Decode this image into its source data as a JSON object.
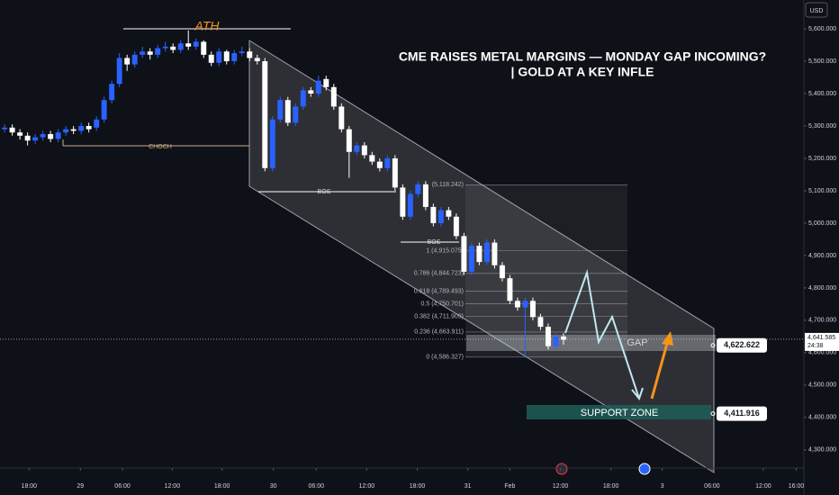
{
  "chart_data": {
    "type": "candlestick",
    "title": "CME RAISES METAL MARGINS — MONDAY GAP INCOMING?",
    "subtitle": "| GOLD AT A KEY INFLE",
    "currency": "USD",
    "up_color": "#2962ff",
    "down_color": "#ffffff",
    "open": [
      5290,
      5295,
      5280,
      5270,
      5255,
      5265,
      5275,
      5260,
      5280,
      5290,
      5285,
      5300,
      5295,
      5320,
      5380,
      5430,
      5510,
      5490,
      5520,
      5530,
      5520,
      5540,
      5545,
      5535,
      5555,
      5545,
      5560,
      5520,
      5495,
      5530,
      5500,
      5525,
      5530,
      5510,
      5500,
      5170,
      5320,
      5380,
      5310,
      5360,
      5410,
      5400,
      5445,
      5420,
      5360,
      5290,
      5220,
      5240,
      5210,
      5190,
      5170,
      5200,
      5110,
      5020,
      5090,
      5120,
      5050,
      5000,
      5040,
      5020,
      4960,
      4850,
      4930,
      4880,
      4940,
      4870,
      4830,
      4760,
      4740,
      4760,
      4710,
      4680,
      4620,
      4650
    ],
    "high": [
      5305,
      5305,
      5290,
      5280,
      5275,
      5285,
      5285,
      5290,
      5300,
      5300,
      5310,
      5310,
      5330,
      5390,
      5440,
      5525,
      5520,
      5530,
      5545,
      5540,
      5550,
      5560,
      5555,
      5565,
      5595,
      5570,
      5565,
      5530,
      5540,
      5535,
      5535,
      5545,
      5540,
      5520,
      5510,
      5330,
      5390,
      5390,
      5370,
      5420,
      5420,
      5455,
      5455,
      5430,
      5370,
      5300,
      5250,
      5250,
      5220,
      5200,
      5210,
      5210,
      5120,
      5100,
      5130,
      5130,
      5060,
      5050,
      5050,
      5030,
      4970,
      4940,
      4940,
      4950,
      4950,
      4880,
      4840,
      4770,
      4770,
      4770,
      4720,
      4690,
      4660,
      4660
    ],
    "low": [
      5280,
      5270,
      5258,
      5240,
      5245,
      5255,
      5250,
      5250,
      5270,
      5275,
      5275,
      5280,
      5285,
      5310,
      5370,
      5420,
      5470,
      5480,
      5510,
      5505,
      5510,
      5530,
      5525,
      5525,
      5535,
      5535,
      5510,
      5485,
      5485,
      5490,
      5490,
      5515,
      5500,
      5490,
      5160,
      5160,
      5310,
      5300,
      5300,
      5350,
      5390,
      5390,
      5410,
      5350,
      5280,
      5140,
      5210,
      5200,
      5180,
      5160,
      5160,
      5100,
      5010,
      5010,
      5080,
      5040,
      4990,
      4990,
      5010,
      4950,
      4840,
      4840,
      4870,
      4870,
      4860,
      4820,
      4750,
      4730,
      4586,
      4700,
      4670,
      4610,
      4610,
      4625
    ],
    "close": [
      5295,
      5280,
      5270,
      5255,
      5265,
      5275,
      5260,
      5280,
      5290,
      5285,
      5300,
      5290,
      5320,
      5380,
      5430,
      5510,
      5490,
      5520,
      5530,
      5520,
      5540,
      5545,
      5535,
      5555,
      5545,
      5560,
      5520,
      5495,
      5530,
      5500,
      5525,
      5530,
      5510,
      5500,
      5170,
      5320,
      5380,
      5310,
      5360,
      5410,
      5400,
      5440,
      5420,
      5360,
      5290,
      5220,
      5240,
      5210,
      5190,
      5170,
      5200,
      5110,
      5020,
      5090,
      5120,
      5050,
      5000,
      5040,
      5020,
      4960,
      4850,
      4930,
      4880,
      4940,
      4870,
      4830,
      4760,
      4740,
      4760,
      4710,
      4680,
      4620,
      4650,
      4640
    ],
    "xlim": [
      -0.6,
      104.4
    ],
    "xticks": [
      {
        "value": 3.2,
        "label": "18:00"
      },
      {
        "value": 9.9,
        "label": "29"
      },
      {
        "value": 15.4,
        "label": "06:00"
      },
      {
        "value": 21.9,
        "label": "12:00"
      },
      {
        "value": 28.4,
        "label": "18:00"
      },
      {
        "value": 35.1,
        "label": "30"
      },
      {
        "value": 40.7,
        "label": "06:00"
      },
      {
        "value": 47.3,
        "label": "12:00"
      },
      {
        "value": 53.9,
        "label": "18:00"
      },
      {
        "value": 60.5,
        "label": "31"
      },
      {
        "value": 66,
        "label": "Feb"
      },
      {
        "value": 72.6,
        "label": "12:00"
      },
      {
        "value": 79.2,
        "label": "18:00"
      },
      {
        "value": 85.9,
        "label": "3"
      },
      {
        "value": 92.4,
        "label": "06:00"
      },
      {
        "value": 99.1,
        "label": "12:00"
      },
      {
        "value": 103.4,
        "label": "16:00"
      }
    ],
    "ylim": [
      4244,
      5689
    ],
    "yticks": [
      {
        "value": 4300,
        "label": "4,300.000"
      },
      {
        "value": 4400,
        "label": "4,400.000"
      },
      {
        "value": 4500,
        "label": "4,500.000"
      },
      {
        "value": 4600,
        "label": "4,600.000"
      },
      {
        "value": 4700,
        "label": "4,700.000"
      },
      {
        "value": 4800,
        "label": "4,800.000"
      },
      {
        "value": 4900,
        "label": "4,900.000"
      },
      {
        "value": 5000,
        "label": "5,000.000"
      },
      {
        "value": 5100,
        "label": "5,100.000"
      },
      {
        "value": 5200,
        "label": "5,200.000"
      },
      {
        "value": 5300,
        "label": "5,300.000"
      },
      {
        "value": 5400,
        "label": "5,400.000"
      },
      {
        "value": 5500,
        "label": "5,500.000"
      },
      {
        "value": 5600,
        "label": "5,600.000"
      }
    ],
    "fib_levels": [
      {
        "value": 5118.242,
        "label": "(5,118.242)"
      },
      {
        "value": 4915.075,
        "label": "1 (4,915.075)"
      },
      {
        "value": 4844.723,
        "label": "0.786 (4,844.723)"
      },
      {
        "value": 4789.493,
        "label": "0.618 (4,789.493)"
      },
      {
        "value": 4750.701,
        "label": "0.5 (4,750.701)"
      },
      {
        "value": 4711.909,
        "label": "0.382 (4,711.909)"
      },
      {
        "value": 4663.911,
        "label": "0.236 (4,663.911)"
      },
      {
        "value": 4586.327,
        "label": "0 (4,586.327)"
      }
    ],
    "price_tags": [
      {
        "value": 4622.622,
        "label": "4,622.622"
      },
      {
        "value": 4411.916,
        "label": "4,411.916"
      }
    ],
    "last_price": {
      "value": 4641.585,
      "label": "4,641.585"
    },
    "countdown": "24:38",
    "annotations": {
      "ath": "ATH",
      "choch": "CHOCH",
      "bos": [
        "BOS",
        "BOS"
      ],
      "gap": "GAP",
      "support_zone": "SUPPORT ZONE"
    }
  }
}
